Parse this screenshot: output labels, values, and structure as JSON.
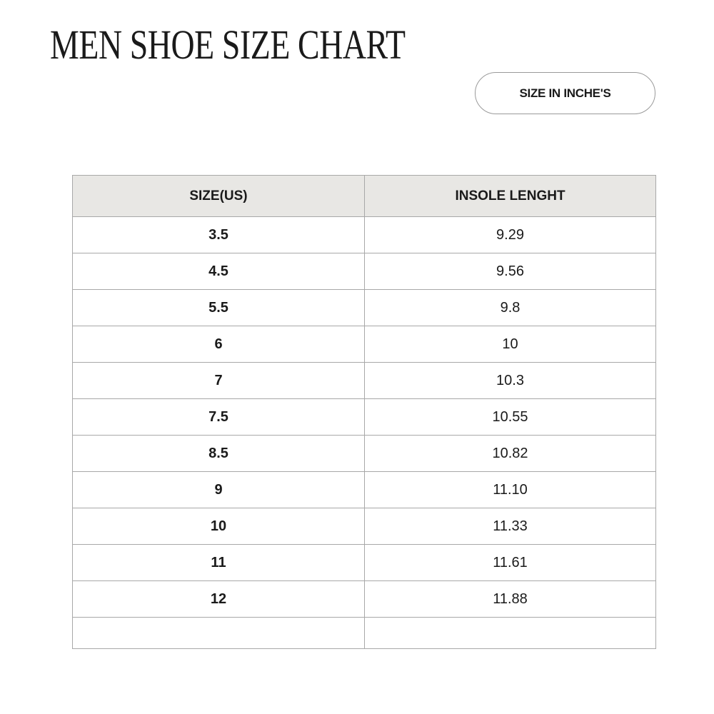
{
  "title": "MEN SHOE SIZE CHART",
  "unit_label": "SIZE IN INCHE'S",
  "table": {
    "headers": [
      "SIZE(US)",
      "INSOLE LENGHT"
    ],
    "rows": [
      {
        "size": "3.5",
        "length": "9.29"
      },
      {
        "size": "4.5",
        "length": "9.56"
      },
      {
        "size": "5.5",
        "length": "9.8"
      },
      {
        "size": "6",
        "length": "10"
      },
      {
        "size": "7",
        "length": "10.3"
      },
      {
        "size": "7.5",
        "length": "10.55"
      },
      {
        "size": "8.5",
        "length": "10.82"
      },
      {
        "size": "9",
        "length": "11.10"
      },
      {
        "size": "10",
        "length": "11.33"
      },
      {
        "size": "11",
        "length": "11.61"
      },
      {
        "size": "12",
        "length": "11.88"
      },
      {
        "size": "",
        "length": ""
      }
    ]
  },
  "colors": {
    "header_bg": "#e8e7e4",
    "border": "#a8a8a8",
    "text": "#1a1a1a"
  }
}
